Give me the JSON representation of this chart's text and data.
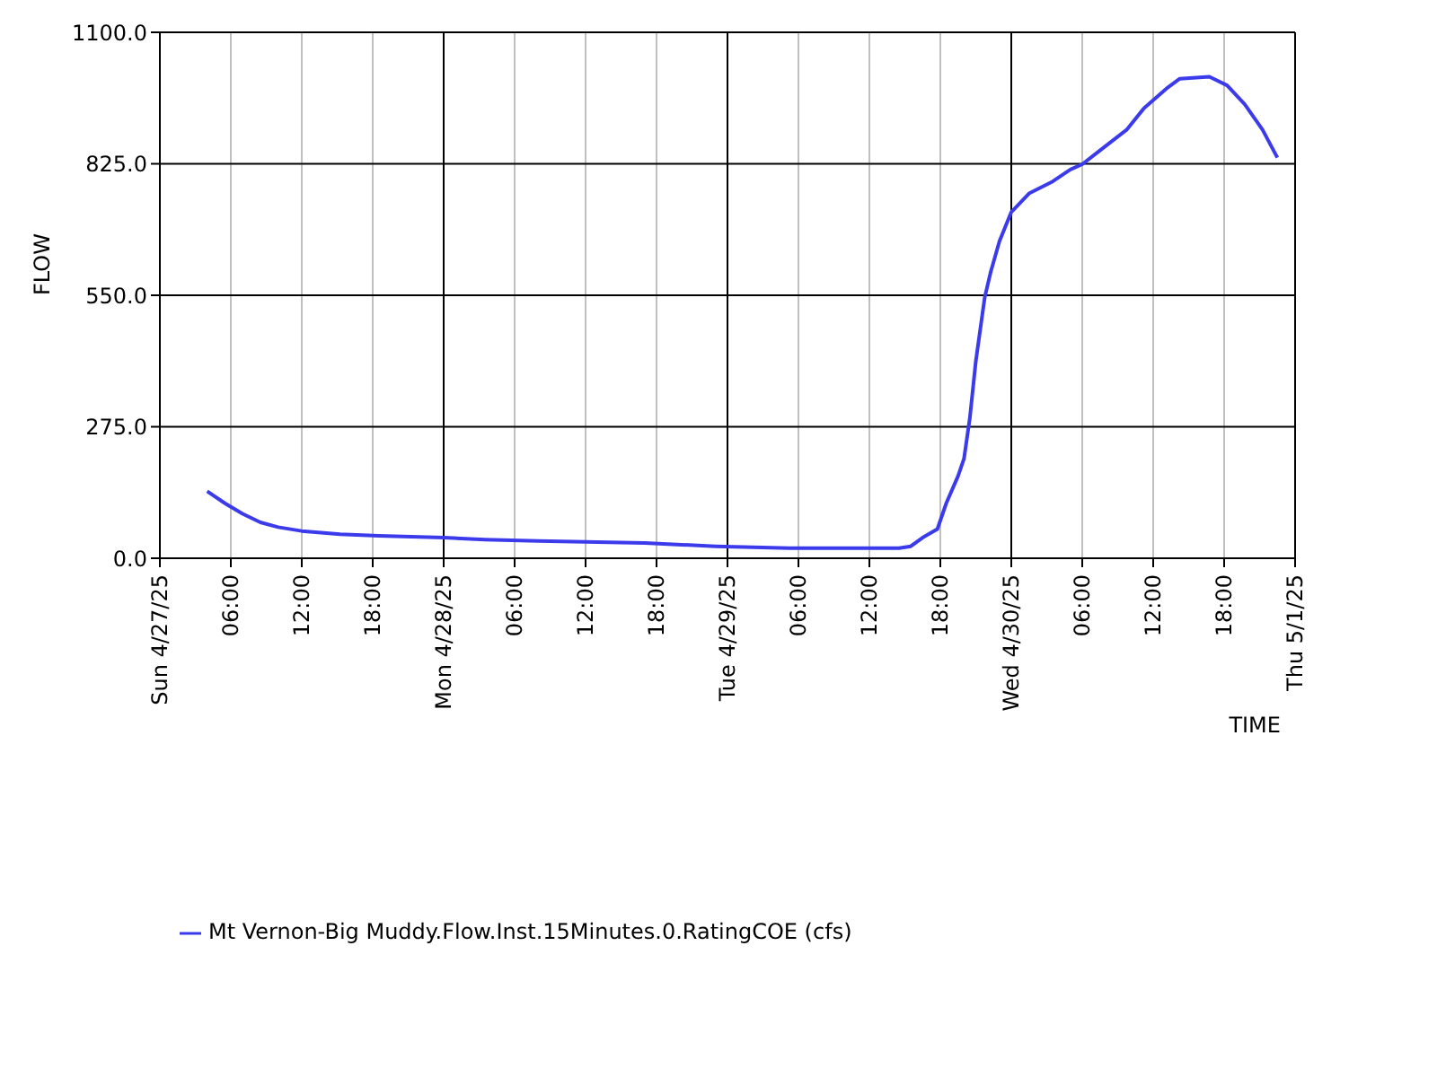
{
  "chart_data": {
    "type": "line",
    "xlabel": "TIME",
    "ylabel": "FLOW",
    "x": [
      "--04-27T04:00",
      "--04-27T05:30",
      "--04-27T07:00",
      "--04-27T08:30",
      "--04-27T10:00",
      "--04-27T12:00",
      "--04-27T15:15",
      "--04-27T18:30",
      "--04-28T00:00",
      "--04-28T03:30",
      "--04-28T08:00",
      "--04-28T17:00",
      "--04-28T23:00",
      "--04-29T05:15",
      "--04-29T14:30",
      "--04-29T15:30",
      "--04-29T16:30",
      "--04-29T17:45",
      "--04-29T18:30",
      "--04-29T19:30",
      "--04-29T20:00",
      "--04-29T20:30",
      "--04-29T21:00",
      "--04-29T21:45",
      "--04-29T22:15",
      "--04-29T23:00",
      "--04-30T00:00",
      "--04-30T01:30",
      "--04-30T03:30",
      "--04-30T05:00",
      "--04-30T06:00",
      "--04-30T07:30",
      "--04-30T09:45",
      "--04-30T11:15",
      "--04-30T13:15",
      "--04-30T14:15",
      "--04-30T16:45",
      "--04-30T18:15",
      "--04-30T19:45",
      "--04-30T21:15",
      "--04-30T22:30"
    ],
    "series": [
      {
        "name": "Mt Vernon-Big Muddy.Flow.Inst.15Minutes.0.RatingCOE (cfs)",
        "color": "#3b3bec",
        "values": [
          140,
          115,
          93,
          75,
          65,
          57,
          50,
          47,
          43,
          39,
          36,
          32,
          25,
          21,
          21,
          25,
          43,
          61,
          115,
          172,
          208,
          294,
          412,
          545,
          598,
          663,
          724,
          763,
          788,
          813,
          824,
          853,
          896,
          942,
          985,
          1003,
          1007,
          989,
          949,
          896,
          838
        ]
      }
    ],
    "xlim": [
      "--04-27T00:00",
      "--05-01T00:00"
    ],
    "xticks": [
      {
        "value": "--04-27T00:00",
        "label": "Sun 4/27/25"
      },
      {
        "value": "--04-27T06:00",
        "label": "06:00"
      },
      {
        "value": "--04-27T12:00",
        "label": "12:00"
      },
      {
        "value": "--04-27T18:00",
        "label": "18:00"
      },
      {
        "value": "--04-28T00:00",
        "label": "Mon 4/28/25"
      },
      {
        "value": "--04-28T06:00",
        "label": "06:00"
      },
      {
        "value": "--04-28T12:00",
        "label": "12:00"
      },
      {
        "value": "--04-28T18:00",
        "label": "18:00"
      },
      {
        "value": "--04-29T00:00",
        "label": "Tue 4/29/25"
      },
      {
        "value": "--04-29T06:00",
        "label": "06:00"
      },
      {
        "value": "--04-29T12:00",
        "label": "12:00"
      },
      {
        "value": "--04-29T18:00",
        "label": "18:00"
      },
      {
        "value": "--04-30T00:00",
        "label": "Wed 4/30/25"
      },
      {
        "value": "--04-30T06:00",
        "label": "06:00"
      },
      {
        "value": "--04-30T12:00",
        "label": "12:00"
      },
      {
        "value": "--04-30T18:00",
        "label": "18:00"
      },
      {
        "value": "--05-01T00:00",
        "label": "Thu 5/1/25"
      }
    ],
    "ylim": [
      0,
      1100
    ],
    "yticks": [
      {
        "value": 0,
        "label": "0.0"
      },
      {
        "value": 275,
        "label": "275.0"
      },
      {
        "value": 550,
        "label": "550.0"
      },
      {
        "value": 825,
        "label": "825.0"
      },
      {
        "value": 1100,
        "label": "1100.0"
      }
    ],
    "grid": true,
    "legend": "bottom left",
    "marker": "none",
    "line_style": "solid"
  }
}
